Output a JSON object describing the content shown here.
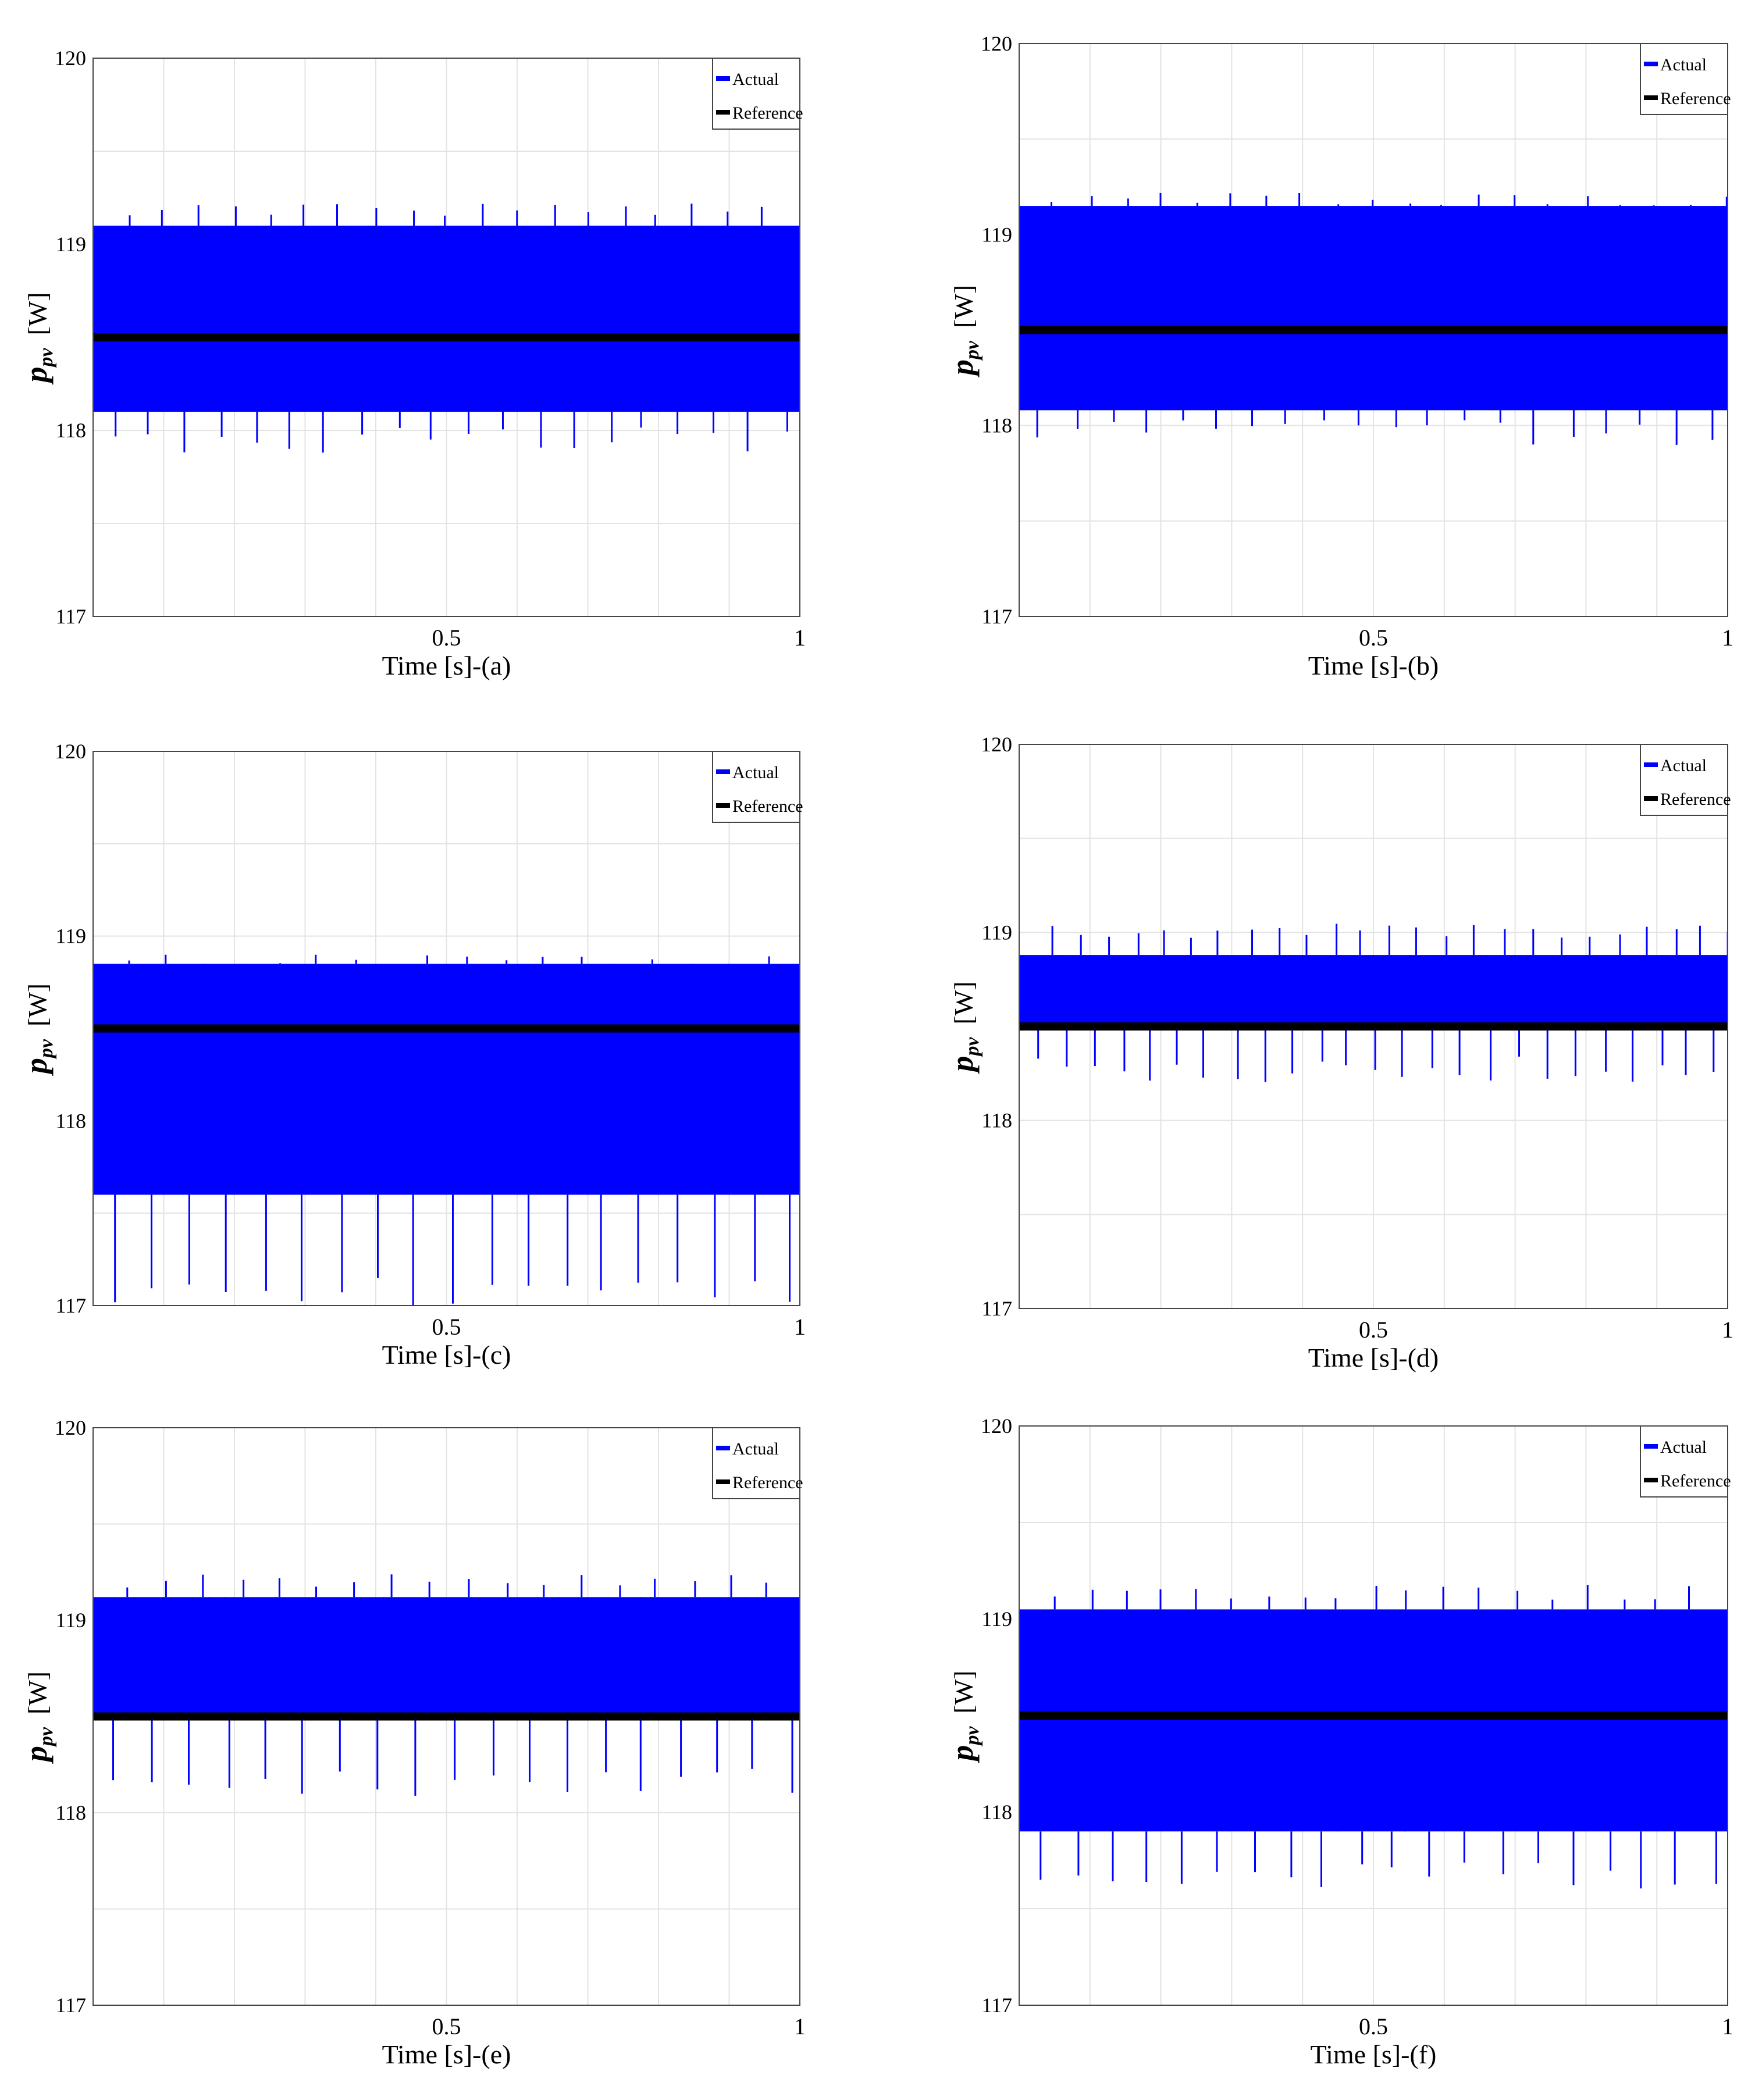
{
  "chart_data": [
    {
      "type": "line",
      "xlabel": "Time [s]-(a)",
      "ylabel_main": "p",
      "ylabel_sub": "pv",
      "ylabel_unit": "[W]",
      "xlim": [
        0,
        1
      ],
      "ylim": [
        117,
        120
      ],
      "xticks": [
        0.5,
        1
      ],
      "xtick_labels": [
        "0.5",
        "1"
      ],
      "yticks": [
        117,
        118,
        119,
        120
      ],
      "ytick_labels": [
        "117",
        "118",
        "119",
        "120"
      ],
      "grid": true,
      "legend_position": "top-right",
      "series": [
        {
          "name": "Actual",
          "color": "#0000ff",
          "band": [
            118.1,
            119.1
          ],
          "spike_high": 119.22,
          "spike_low": 117.87,
          "spike_period": 0.05
        },
        {
          "name": "Reference",
          "color": "#000000",
          "value": 118.5
        }
      ]
    },
    {
      "type": "line",
      "xlabel": "Time [s]-(b)",
      "ylabel_main": "p",
      "ylabel_sub": "pv",
      "ylabel_unit": "[W]",
      "xlim": [
        0,
        1
      ],
      "ylim": [
        117,
        120
      ],
      "xticks": [
        0.5,
        1
      ],
      "xtick_labels": [
        "0.5",
        "1"
      ],
      "yticks": [
        117,
        118,
        119,
        120
      ],
      "ytick_labels": [
        "117",
        "118",
        "119",
        "120"
      ],
      "grid": true,
      "legend_position": "top-right",
      "series": [
        {
          "name": "Actual",
          "color": "#0000ff",
          "band": [
            118.08,
            119.15
          ],
          "spike_high": 119.22,
          "spike_low": 117.88,
          "spike_period": 0.05
        },
        {
          "name": "Reference",
          "color": "#000000",
          "value": 118.5
        }
      ]
    },
    {
      "type": "line",
      "xlabel": "Time [s]-(c)",
      "ylabel_main": "p",
      "ylabel_sub": "pv",
      "ylabel_unit": "[W]",
      "xlim": [
        0,
        1
      ],
      "ylim": [
        117,
        120
      ],
      "xticks": [
        0.5,
        1
      ],
      "xtick_labels": [
        "0.5",
        "1"
      ],
      "yticks": [
        117,
        118,
        119,
        120
      ],
      "ytick_labels": [
        "117",
        "118",
        "119",
        "120"
      ],
      "grid": true,
      "legend_position": "top-right",
      "series": [
        {
          "name": "Actual",
          "color": "#0000ff",
          "band": [
            117.6,
            118.85
          ],
          "spike_high": 118.9,
          "spike_low": 117.0,
          "spike_period": 0.053
        },
        {
          "name": "Reference",
          "color": "#000000",
          "value": 118.5
        }
      ]
    },
    {
      "type": "line",
      "xlabel": "Time [s]-(d)",
      "ylabel_main": "p",
      "ylabel_sub": "pv",
      "ylabel_unit": "[W]",
      "xlim": [
        0,
        1
      ],
      "ylim": [
        117,
        120
      ],
      "xticks": [
        0.5,
        1
      ],
      "xtick_labels": [
        "0.5",
        "1"
      ],
      "yticks": [
        117,
        118,
        119,
        120
      ],
      "ytick_labels": [
        "117",
        "118",
        "119",
        "120"
      ],
      "grid": true,
      "legend_position": "top-right",
      "series": [
        {
          "name": "Actual",
          "color": "#0000ff",
          "band": [
            118.48,
            118.88
          ],
          "spike_high": 119.05,
          "spike_low": 118.2,
          "spike_period": 0.04
        },
        {
          "name": "Reference",
          "color": "#000000",
          "value": 118.5
        }
      ]
    },
    {
      "type": "line",
      "xlabel": "Time [s]-(e)",
      "ylabel_main": "p",
      "ylabel_sub": "pv",
      "ylabel_unit": "[W]",
      "xlim": [
        0,
        1
      ],
      "ylim": [
        117,
        120
      ],
      "xticks": [
        0.5,
        1
      ],
      "xtick_labels": [
        "0.5",
        "1"
      ],
      "yticks": [
        117,
        118,
        119,
        120
      ],
      "ytick_labels": [
        "117",
        "118",
        "119",
        "120"
      ],
      "grid": true,
      "legend_position": "top-right",
      "series": [
        {
          "name": "Actual",
          "color": "#0000ff",
          "band": [
            118.5,
            119.12
          ],
          "spike_high": 119.25,
          "spike_low": 118.08,
          "spike_period": 0.053
        },
        {
          "name": "Reference",
          "color": "#000000",
          "value": 118.5
        }
      ]
    },
    {
      "type": "line",
      "xlabel": "Time [s]-(f)",
      "ylabel_main": "p",
      "ylabel_sub": "pv",
      "ylabel_unit": "[W]",
      "xlim": [
        0,
        1
      ],
      "ylim": [
        117,
        120
      ],
      "xticks": [
        0.5,
        1
      ],
      "xtick_labels": [
        "0.5",
        "1"
      ],
      "yticks": [
        117,
        118,
        119,
        120
      ],
      "ytick_labels": [
        "117",
        "118",
        "119",
        "120"
      ],
      "grid": true,
      "legend_position": "top-right",
      "series": [
        {
          "name": "Actual",
          "color": "#0000ff",
          "band": [
            117.9,
            119.05
          ],
          "spike_high": 119.18,
          "spike_low": 117.6,
          "spike_period": 0.05
        },
        {
          "name": "Reference",
          "color": "#000000",
          "value": 118.5
        }
      ]
    }
  ]
}
